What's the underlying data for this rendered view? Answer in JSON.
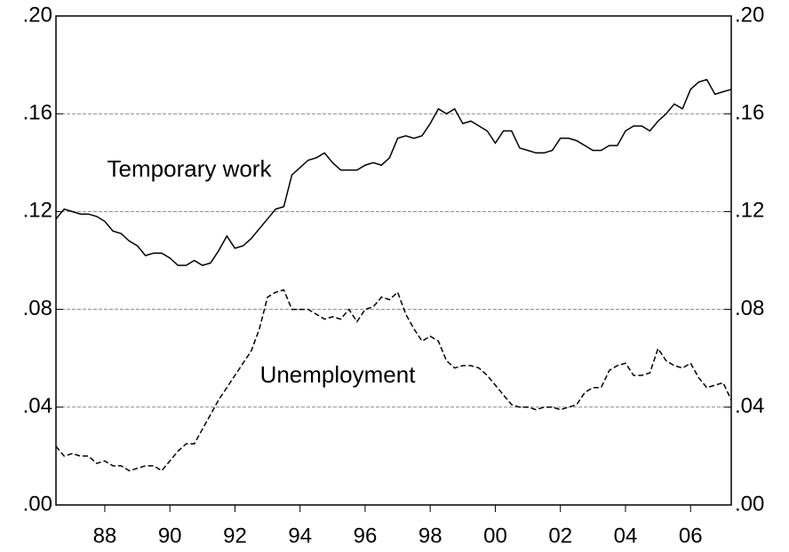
{
  "chart_data": {
    "type": "line",
    "x": [
      1987,
      1987.25,
      1987.5,
      1987.75,
      1988,
      1988.25,
      1988.5,
      1988.75,
      1989,
      1989.25,
      1989.5,
      1989.75,
      1990,
      1990.25,
      1990.5,
      1990.75,
      1991,
      1991.25,
      1991.5,
      1991.75,
      1992,
      1992.25,
      1992.5,
      1992.75,
      1993,
      1993.25,
      1993.5,
      1993.75,
      1994,
      1994.25,
      1994.5,
      1994.75,
      1995,
      1995.25,
      1995.5,
      1995.75,
      1996,
      1996.25,
      1996.5,
      1996.75,
      1997,
      1997.25,
      1997.5,
      1997.75,
      1998,
      1998.25,
      1998.5,
      1998.75,
      1999,
      1999.25,
      1999.5,
      1999.75,
      2000,
      2000.25,
      2000.5,
      2000.75,
      2001,
      2001.25,
      2001.5,
      2001.75,
      2002,
      2002.25,
      2002.5,
      2002.75,
      2003,
      2003.25,
      2003.5,
      2003.75,
      2004,
      2004.25,
      2004.5,
      2004.75,
      2005,
      2005.25,
      2005.5,
      2005.75,
      2006,
      2006.25,
      2006.5,
      2006.75,
      2007,
      2007.25,
      2007.5,
      2007.75
    ],
    "series": [
      {
        "name": "Temporary work",
        "color": "#000000",
        "line_style": "solid",
        "values": [
          0.117,
          0.121,
          0.12,
          0.119,
          0.119,
          0.118,
          0.116,
          0.112,
          0.111,
          0.108,
          0.106,
          0.102,
          0.103,
          0.103,
          0.101,
          0.098,
          0.098,
          0.1,
          0.098,
          0.099,
          0.104,
          0.11,
          0.105,
          0.106,
          0.109,
          0.113,
          0.117,
          0.121,
          0.122,
          0.135,
          0.138,
          0.141,
          0.142,
          0.144,
          0.14,
          0.137,
          0.137,
          0.137,
          0.139,
          0.14,
          0.139,
          0.142,
          0.15,
          0.151,
          0.15,
          0.151,
          0.156,
          0.162,
          0.16,
          0.162,
          0.156,
          0.157,
          0.155,
          0.153,
          0.148,
          0.153,
          0.153,
          0.146,
          0.145,
          0.144,
          0.144,
          0.145,
          0.15,
          0.15,
          0.149,
          0.147,
          0.145,
          0.145,
          0.147,
          0.147,
          0.153,
          0.155,
          0.155,
          0.153,
          0.157,
          0.16,
          0.164,
          0.162,
          0.17,
          0.173,
          0.174,
          0.168,
          0.169,
          0.17
        ]
      },
      {
        "name": "Unemployment",
        "color": "#000000",
        "line_style": "dashed",
        "values": [
          0.024,
          0.02,
          0.021,
          0.02,
          0.02,
          0.017,
          0.018,
          0.016,
          0.016,
          0.014,
          0.015,
          0.016,
          0.016,
          0.014,
          0.018,
          0.022,
          0.025,
          0.025,
          0.031,
          0.037,
          0.043,
          0.048,
          0.053,
          0.058,
          0.063,
          0.072,
          0.085,
          0.087,
          0.088,
          0.08,
          0.08,
          0.08,
          0.078,
          0.076,
          0.077,
          0.076,
          0.08,
          0.075,
          0.08,
          0.081,
          0.085,
          0.084,
          0.087,
          0.078,
          0.072,
          0.067,
          0.069,
          0.067,
          0.059,
          0.056,
          0.057,
          0.057,
          0.056,
          0.053,
          0.049,
          0.045,
          0.041,
          0.04,
          0.04,
          0.039,
          0.04,
          0.04,
          0.039,
          0.04,
          0.041,
          0.046,
          0.048,
          0.048,
          0.055,
          0.057,
          0.058,
          0.053,
          0.053,
          0.054,
          0.064,
          0.059,
          0.057,
          0.056,
          0.058,
          0.052,
          0.048,
          0.049,
          0.05,
          0.043
        ]
      }
    ],
    "xlim": [
      1987,
      2007.75
    ],
    "xticks": [
      {
        "value": 1988.5,
        "label": "88"
      },
      {
        "value": 1990.5,
        "label": "90"
      },
      {
        "value": 1992.5,
        "label": "92"
      },
      {
        "value": 1994.5,
        "label": "94"
      },
      {
        "value": 1996.5,
        "label": "96"
      },
      {
        "value": 1998.5,
        "label": "98"
      },
      {
        "value": 2000.5,
        "label": "00"
      },
      {
        "value": 2002.5,
        "label": "02"
      },
      {
        "value": 2004.5,
        "label": "04"
      },
      {
        "value": 2006.5,
        "label": "06"
      }
    ],
    "ylim": [
      0,
      0.2
    ],
    "yticks": [
      {
        "value": 0,
        "label": ".00"
      },
      {
        "value": 0.04,
        "label": ".04"
      },
      {
        "value": 0.08,
        "label": ".08"
      },
      {
        "value": 0.12,
        "label": ".12"
      },
      {
        "value": 0.16,
        "label": ".16"
      },
      {
        "value": 0.2,
        "label": ".20"
      }
    ],
    "grid": true,
    "right_axis": true
  }
}
